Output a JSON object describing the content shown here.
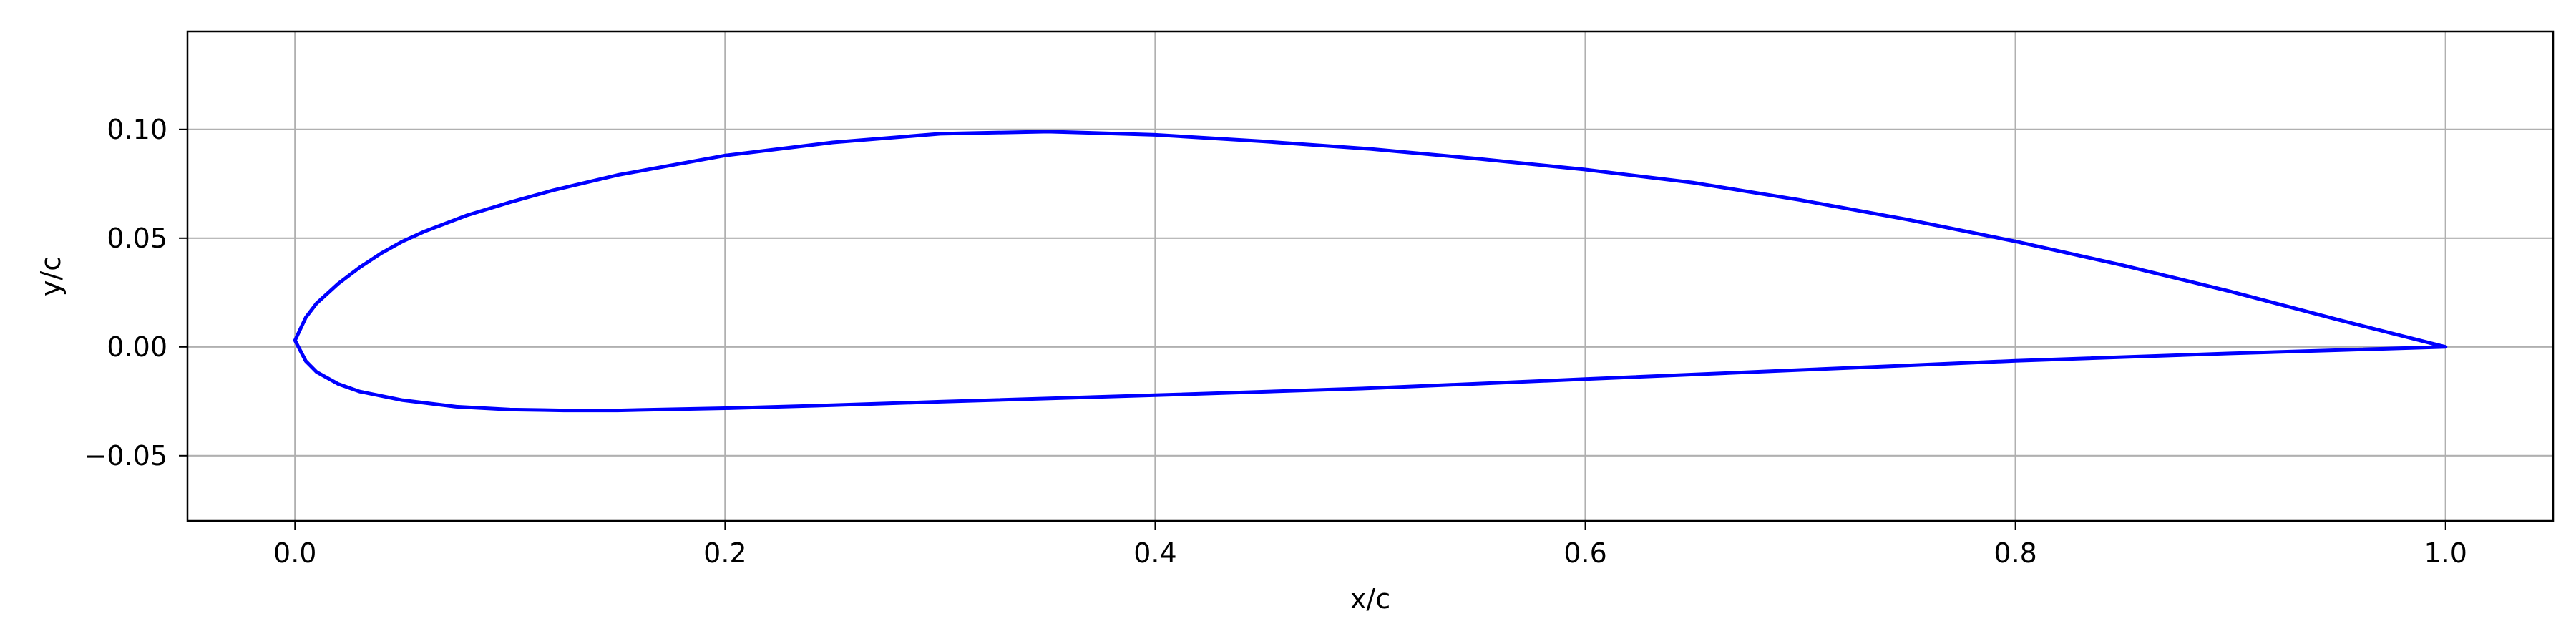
{
  "chart_data": {
    "type": "line",
    "title": "",
    "xlabel": "x/c",
    "ylabel": "y/c",
    "xlim": [
      -0.05,
      1.05
    ],
    "ylim": [
      -0.08,
      0.145
    ],
    "xticks": [
      0.0,
      0.2,
      0.4,
      0.6,
      0.8,
      1.0
    ],
    "xtick_labels": [
      "0.0",
      "0.2",
      "0.4",
      "0.6",
      "0.8",
      "1.0"
    ],
    "yticks": [
      -0.05,
      0.0,
      0.05,
      0.1
    ],
    "ytick_labels": [
      "−0.05",
      "0.00",
      "0.05",
      "0.10"
    ],
    "grid": true,
    "series": [
      {
        "color": "#0000ff",
        "x": [
          1.0,
          0.95,
          0.9,
          0.85,
          0.8,
          0.75,
          0.7,
          0.65,
          0.6,
          0.55,
          0.5,
          0.45,
          0.4,
          0.35,
          0.3,
          0.25,
          0.2,
          0.15,
          0.12,
          0.1,
          0.08,
          0.06,
          0.05,
          0.04,
          0.03,
          0.02,
          0.01,
          0.005,
          0.0,
          0.005,
          0.01,
          0.02,
          0.03,
          0.05,
          0.075,
          0.1,
          0.125,
          0.15,
          0.2,
          0.25,
          0.3,
          0.4,
          0.5,
          0.6,
          0.7,
          0.8,
          0.9,
          0.95,
          1.0
        ],
        "y": [
          0.0,
          0.0125,
          0.0255,
          0.0375,
          0.0485,
          0.0585,
          0.0675,
          0.0755,
          0.0815,
          0.0865,
          0.091,
          0.0945,
          0.0975,
          0.099,
          0.098,
          0.094,
          0.088,
          0.079,
          0.072,
          0.0665,
          0.0605,
          0.053,
          0.0485,
          0.043,
          0.0365,
          0.029,
          0.02,
          0.0135,
          0.003,
          -0.0065,
          -0.0115,
          -0.017,
          -0.0205,
          -0.0245,
          -0.0275,
          -0.0288,
          -0.0292,
          -0.0292,
          -0.0282,
          -0.0268,
          -0.0252,
          -0.0222,
          -0.019,
          -0.0148,
          -0.0106,
          -0.0064,
          -0.003,
          -0.0015,
          0.0
        ]
      }
    ]
  }
}
